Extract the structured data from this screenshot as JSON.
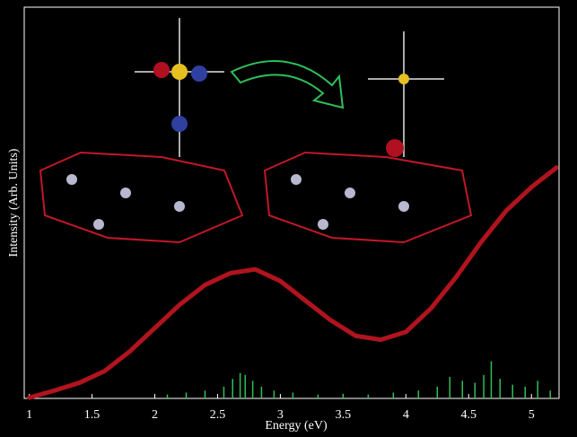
{
  "chart_data": {
    "type": "line",
    "xlabel": "Energy (eV)",
    "ylabel": "Intensity (Arb. Units)",
    "xlim": [
      0.96,
      5.22
    ],
    "ylim": [
      0,
      1
    ],
    "xticks": [
      1,
      1.5,
      2,
      2.5,
      3,
      3.5,
      4,
      4.5,
      5
    ],
    "x": [
      1.0,
      1.2,
      1.4,
      1.6,
      1.8,
      2.0,
      2.2,
      2.4,
      2.6,
      2.8,
      3.0,
      3.2,
      3.4,
      3.6,
      3.8,
      4.0,
      4.2,
      4.4,
      4.6,
      4.8,
      5.0,
      5.2
    ],
    "values": [
      0.002,
      0.02,
      0.04,
      0.07,
      0.12,
      0.18,
      0.24,
      0.29,
      0.32,
      0.33,
      0.3,
      0.25,
      0.2,
      0.16,
      0.15,
      0.17,
      0.23,
      0.31,
      0.4,
      0.48,
      0.54,
      0.59
    ],
    "color": "#b0141e",
    "sticks": {
      "color": "#2fbf5a",
      "x": [
        2.1,
        2.25,
        2.4,
        2.55,
        2.62,
        2.68,
        2.72,
        2.78,
        2.85,
        2.95,
        3.1,
        3.3,
        3.5,
        3.7,
        3.9,
        4.1,
        4.25,
        4.35,
        4.45,
        4.55,
        4.62,
        4.68,
        4.75,
        4.85,
        4.95,
        5.05,
        5.15
      ],
      "values": [
        0.01,
        0.015,
        0.02,
        0.03,
        0.05,
        0.065,
        0.06,
        0.045,
        0.03,
        0.02,
        0.015,
        0.01,
        0.012,
        0.01,
        0.015,
        0.02,
        0.03,
        0.055,
        0.045,
        0.04,
        0.06,
        0.095,
        0.05,
        0.035,
        0.03,
        0.045,
        0.02
      ]
    }
  }
}
